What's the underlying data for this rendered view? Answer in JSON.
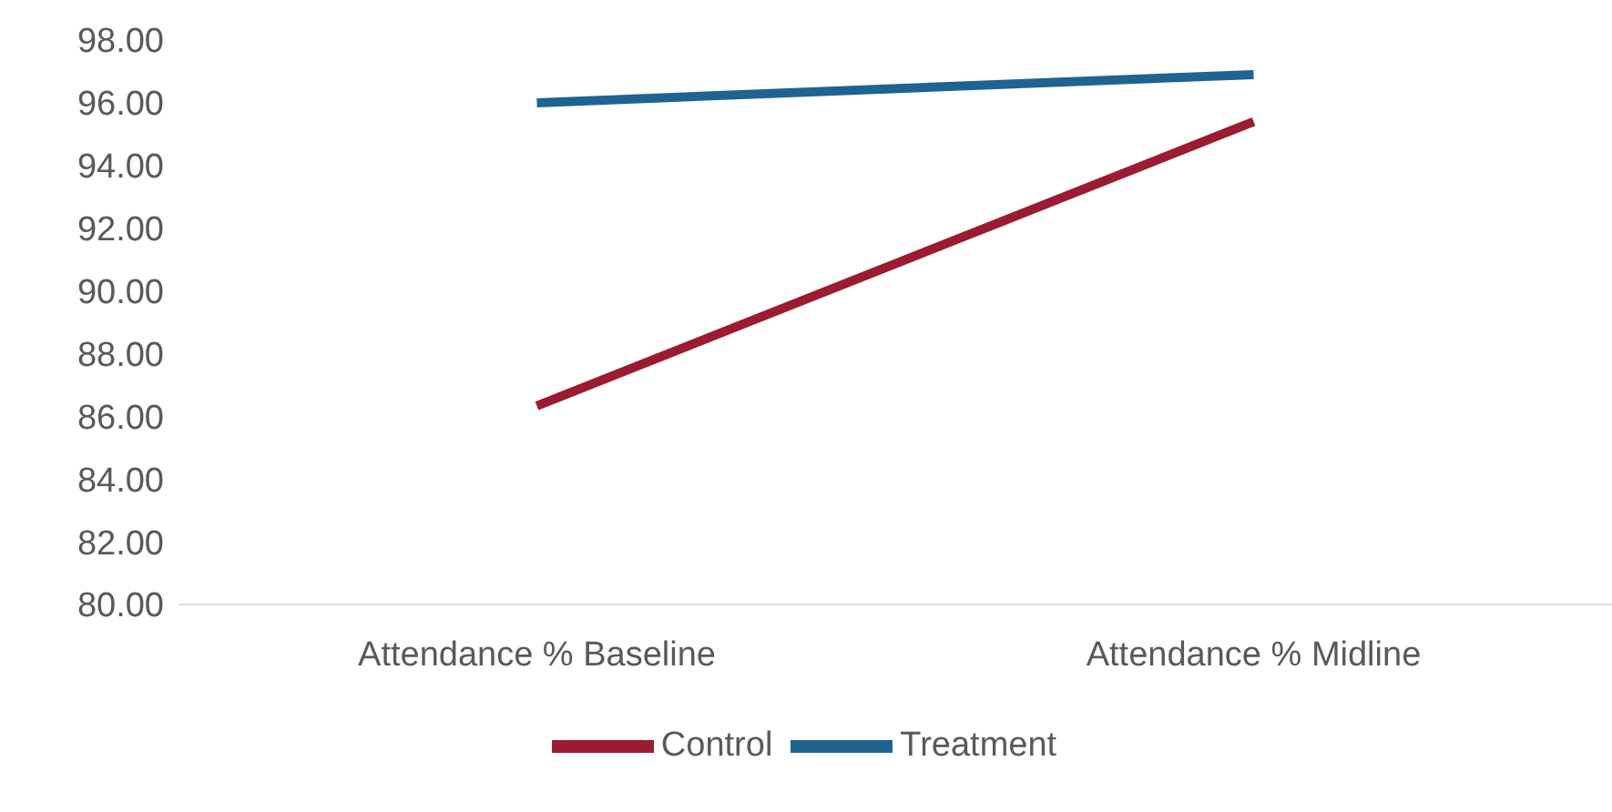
{
  "chart_data": {
    "type": "line",
    "categories": [
      "Attendance % Baseline",
      "Attendance % Midline"
    ],
    "series": [
      {
        "name": "Control",
        "color": "#9b1b30",
        "values": [
          86.33,
          95.4
        ]
      },
      {
        "name": "Treatment",
        "color": "#1f6391",
        "values": [
          96.0,
          96.9
        ]
      }
    ],
    "ylim": [
      80,
      98
    ],
    "yticks": [
      {
        "value": 80,
        "label": "80.00"
      },
      {
        "value": 82,
        "label": "82.00"
      },
      {
        "value": 84,
        "label": "84.00"
      },
      {
        "value": 86,
        "label": "86.00"
      },
      {
        "value": 88,
        "label": "88.00"
      },
      {
        "value": 90,
        "label": "90.00"
      },
      {
        "value": 92,
        "label": "92.00"
      },
      {
        "value": 94,
        "label": "94.00"
      },
      {
        "value": 96,
        "label": "96.00"
      },
      {
        "value": 98,
        "label": "98.00"
      }
    ],
    "grid": false,
    "legend": "bottom",
    "marker": "none",
    "line_style": "solid"
  }
}
